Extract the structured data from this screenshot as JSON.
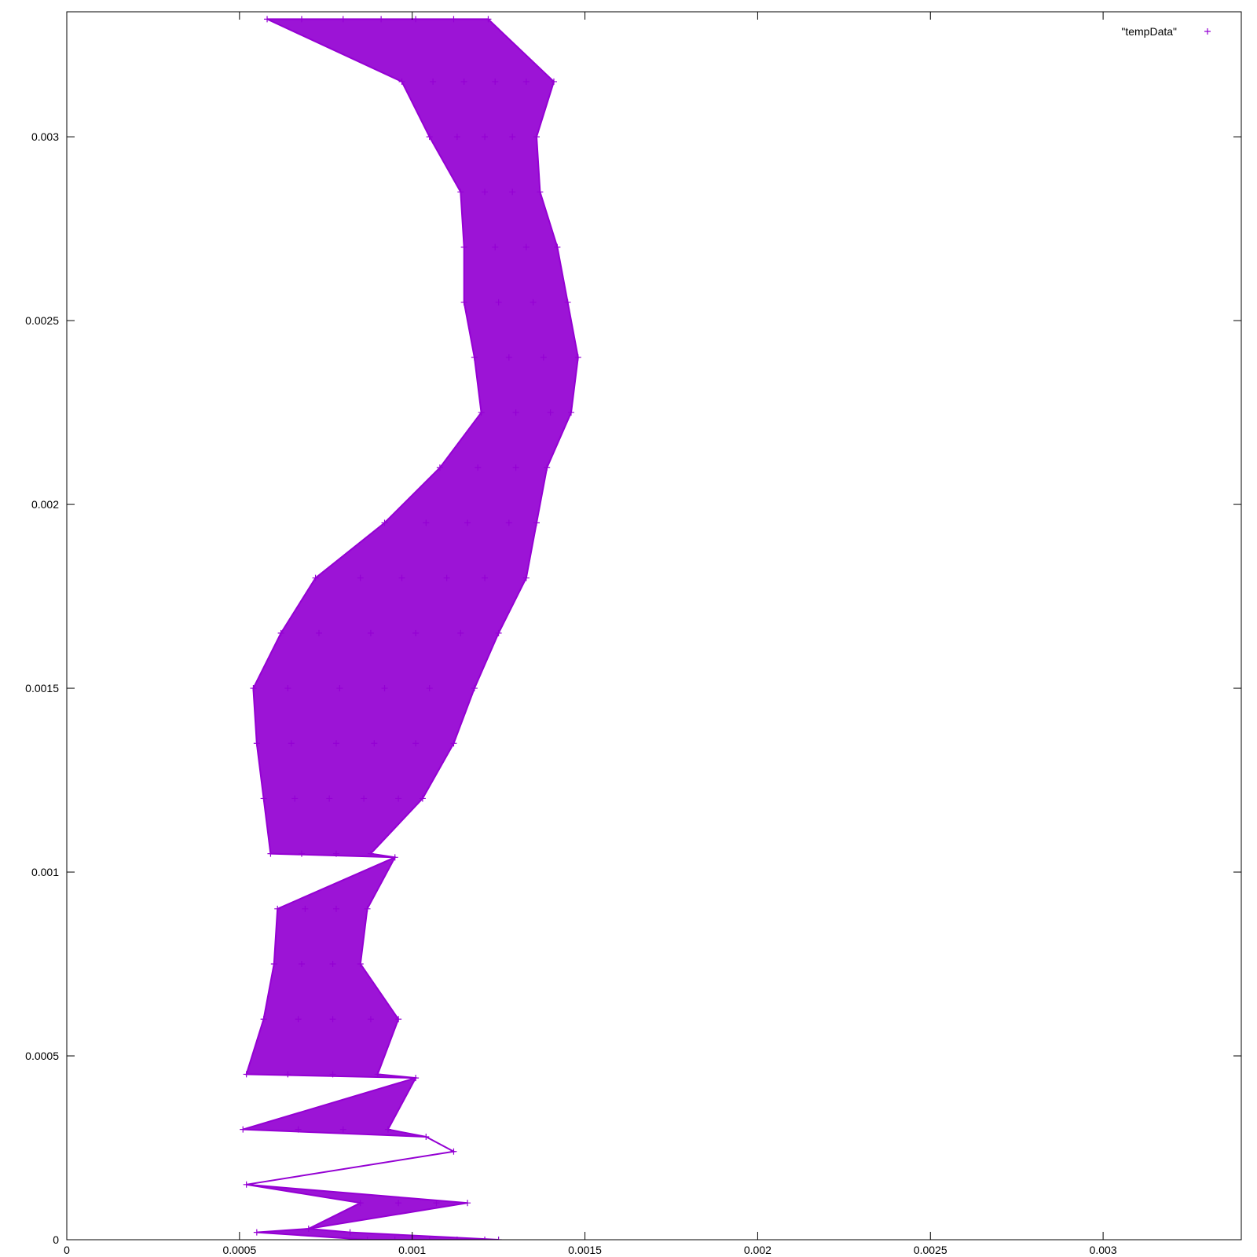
{
  "chart_data": {
    "type": "scatter",
    "title": "",
    "xlabel": "",
    "ylabel": "",
    "xlim": [
      0,
      0.0034
    ],
    "ylim": [
      0,
      0.00334
    ],
    "grid": false,
    "legend_position": "top-right",
    "x_ticks": [
      {
        "value": 0,
        "label": "0"
      },
      {
        "value": 0.0005,
        "label": "0.0005"
      },
      {
        "value": 0.001,
        "label": "0.001"
      },
      {
        "value": 0.0015,
        "label": "0.0015"
      },
      {
        "value": 0.002,
        "label": "0.002"
      },
      {
        "value": 0.0025,
        "label": "0.0025"
      },
      {
        "value": 0.003,
        "label": "0.003"
      }
    ],
    "y_ticks": [
      {
        "value": 0,
        "label": "0"
      },
      {
        "value": 0.0005,
        "label": "0.0005"
      },
      {
        "value": 0.001,
        "label": "0.001"
      },
      {
        "value": 0.0015,
        "label": "0.0015"
      },
      {
        "value": 0.002,
        "label": "0.002"
      },
      {
        "value": 0.0025,
        "label": "0.0025"
      },
      {
        "value": 0.003,
        "label": "0.003"
      }
    ],
    "series": [
      {
        "name": "\"tempData\"",
        "color": "#9400d3",
        "marker": "plus",
        "points": [
          [
            0.00087,
            0.0
          ],
          [
            0.00095,
            0.0
          ],
          [
            0.00105,
            0.0
          ],
          [
            0.00113,
            0.0
          ],
          [
            0.00121,
            0.0
          ],
          [
            0.00125,
            0.0
          ],
          [
            0.00055,
            2e-05
          ],
          [
            0.0007,
            3e-05
          ],
          [
            0.00082,
            2e-05
          ],
          [
            0.00052,
            0.00015
          ],
          [
            0.00085,
            0.0001
          ],
          [
            0.00096,
            0.0001
          ],
          [
            0.00107,
            0.0001
          ],
          [
            0.00116,
            0.0001
          ],
          [
            0.00051,
            0.0003
          ],
          [
            0.00067,
            0.0003
          ],
          [
            0.0008,
            0.0003
          ],
          [
            0.00093,
            0.0003
          ],
          [
            0.00104,
            0.00028
          ],
          [
            0.00112,
            0.00024
          ],
          [
            0.00052,
            0.00045
          ],
          [
            0.00064,
            0.00045
          ],
          [
            0.00077,
            0.00045
          ],
          [
            0.0009,
            0.00045
          ],
          [
            0.00101,
            0.00044
          ],
          [
            0.00057,
            0.0006
          ],
          [
            0.00067,
            0.0006
          ],
          [
            0.00077,
            0.0006
          ],
          [
            0.00088,
            0.0006
          ],
          [
            0.00096,
            0.0006
          ],
          [
            0.0006,
            0.00075
          ],
          [
            0.00068,
            0.00075
          ],
          [
            0.00077,
            0.00075
          ],
          [
            0.00085,
            0.00075
          ],
          [
            0.00061,
            0.0009
          ],
          [
            0.00069,
            0.0009
          ],
          [
            0.00078,
            0.0009
          ],
          [
            0.00087,
            0.0009
          ],
          [
            0.00059,
            0.00105
          ],
          [
            0.00068,
            0.00105
          ],
          [
            0.00078,
            0.00105
          ],
          [
            0.00088,
            0.00105
          ],
          [
            0.00095,
            0.00104
          ],
          [
            0.00057,
            0.0012
          ],
          [
            0.00066,
            0.0012
          ],
          [
            0.00076,
            0.0012
          ],
          [
            0.00086,
            0.0012
          ],
          [
            0.00096,
            0.0012
          ],
          [
            0.00103,
            0.0012
          ],
          [
            0.00055,
            0.00135
          ],
          [
            0.00065,
            0.00135
          ],
          [
            0.00078,
            0.00135
          ],
          [
            0.00089,
            0.00135
          ],
          [
            0.00101,
            0.00135
          ],
          [
            0.00112,
            0.00135
          ],
          [
            0.00054,
            0.0015
          ],
          [
            0.00064,
            0.0015
          ],
          [
            0.00079,
            0.0015
          ],
          [
            0.00092,
            0.0015
          ],
          [
            0.00105,
            0.0015
          ],
          [
            0.00118,
            0.0015
          ],
          [
            0.00062,
            0.00165
          ],
          [
            0.00073,
            0.00165
          ],
          [
            0.00088,
            0.00165
          ],
          [
            0.00101,
            0.00165
          ],
          [
            0.00114,
            0.00165
          ],
          [
            0.00125,
            0.00165
          ],
          [
            0.00072,
            0.0018
          ],
          [
            0.00085,
            0.0018
          ],
          [
            0.00097,
            0.0018
          ],
          [
            0.0011,
            0.0018
          ],
          [
            0.00121,
            0.0018
          ],
          [
            0.00133,
            0.0018
          ],
          [
            0.00092,
            0.00195
          ],
          [
            0.00104,
            0.00195
          ],
          [
            0.00116,
            0.00195
          ],
          [
            0.00128,
            0.00195
          ],
          [
            0.00136,
            0.00195
          ],
          [
            0.00108,
            0.0021
          ],
          [
            0.00119,
            0.0021
          ],
          [
            0.0013,
            0.0021
          ],
          [
            0.00139,
            0.0021
          ],
          [
            0.0012,
            0.00225
          ],
          [
            0.0013,
            0.00225
          ],
          [
            0.0014,
            0.00225
          ],
          [
            0.00146,
            0.00225
          ],
          [
            0.00118,
            0.0024
          ],
          [
            0.00128,
            0.0024
          ],
          [
            0.00138,
            0.0024
          ],
          [
            0.00148,
            0.0024
          ],
          [
            0.00115,
            0.00255
          ],
          [
            0.00125,
            0.00255
          ],
          [
            0.00135,
            0.00255
          ],
          [
            0.00145,
            0.00255
          ],
          [
            0.00115,
            0.0027
          ],
          [
            0.00124,
            0.0027
          ],
          [
            0.00133,
            0.0027
          ],
          [
            0.00142,
            0.0027
          ],
          [
            0.00114,
            0.00285
          ],
          [
            0.00121,
            0.00285
          ],
          [
            0.00129,
            0.00285
          ],
          [
            0.00137,
            0.00285
          ],
          [
            0.00105,
            0.003
          ],
          [
            0.00113,
            0.003
          ],
          [
            0.00121,
            0.003
          ],
          [
            0.00129,
            0.003
          ],
          [
            0.00136,
            0.003
          ],
          [
            0.00097,
            0.00315
          ],
          [
            0.00106,
            0.00315
          ],
          [
            0.00115,
            0.00315
          ],
          [
            0.00124,
            0.00315
          ],
          [
            0.00133,
            0.00315
          ],
          [
            0.00141,
            0.00315
          ],
          [
            0.00058,
            0.00332
          ],
          [
            0.00068,
            0.00332
          ],
          [
            0.0008,
            0.00332
          ],
          [
            0.00091,
            0.00332
          ],
          [
            0.00101,
            0.00332
          ],
          [
            0.00112,
            0.00332
          ],
          [
            0.00122,
            0.00332
          ]
        ]
      }
    ]
  }
}
